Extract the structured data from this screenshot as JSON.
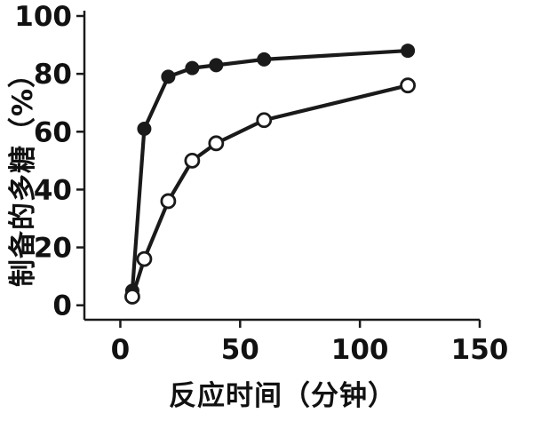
{
  "chart_data": {
    "type": "line",
    "title": "",
    "xlabel": "反应时间（分钟）",
    "ylabel": "制备的多糖（%）",
    "xlim": [
      0,
      150
    ],
    "ylim": [
      0,
      100
    ],
    "x_ticks": [
      0,
      50,
      100,
      150
    ],
    "y_ticks": [
      0,
      20,
      40,
      60,
      80,
      100
    ],
    "grid": false,
    "legend_position": "none",
    "colors": {
      "axis": "#1a1a1a",
      "series": "#1a1a1a",
      "open_marker_fill": "#ffffff"
    },
    "series": [
      {
        "name": "filled-circle-series",
        "marker": "filled-circle",
        "color": "#1a1a1a",
        "x": [
          5,
          10,
          20,
          30,
          40,
          60,
          120
        ],
        "values": [
          5,
          61,
          79,
          82,
          83,
          85,
          88
        ]
      },
      {
        "name": "open-circle-series",
        "marker": "open-circle",
        "color": "#1a1a1a",
        "marker_fill": "#ffffff",
        "x": [
          5,
          10,
          20,
          30,
          40,
          60,
          120
        ],
        "values": [
          3,
          16,
          36,
          50,
          56,
          64,
          76
        ]
      }
    ]
  }
}
